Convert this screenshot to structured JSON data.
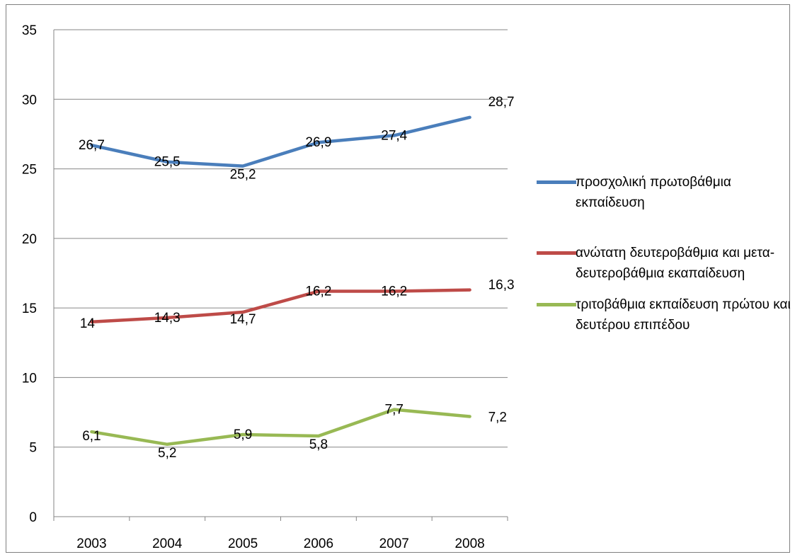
{
  "chart_data": {
    "type": "line",
    "categories": [
      "2003",
      "2004",
      "2005",
      "2006",
      "2007",
      "2008"
    ],
    "ylim": [
      0,
      35
    ],
    "yticks": [
      "0",
      "5",
      "10",
      "15",
      "20",
      "25",
      "30",
      "35"
    ],
    "grid": true,
    "legend_position": "right",
    "series": [
      {
        "name": "προσχολική πρωτοβάθμια εκπαίδευση",
        "color": "#4a7ebb",
        "values": [
          26.7,
          25.5,
          25.2,
          26.9,
          27.4,
          28.7
        ],
        "labels": [
          "26,7",
          "25,5",
          "25,2",
          "26,9",
          "27,4",
          "28,7"
        ]
      },
      {
        "name": "ανώτατη δευτεροβάθμια και μετα-δευτεροβάθμια εκαπαίδευση",
        "color": "#be4b48",
        "values": [
          14,
          14.3,
          14.7,
          16.2,
          16.2,
          16.3
        ],
        "labels": [
          "14",
          "14,3",
          "14,7",
          "16,2",
          "16,2",
          "16,3"
        ]
      },
      {
        "name": "τριτοβάθμια εκπαίδευση πρώτου και δευτέρου επιπέδου",
        "color": "#98b954",
        "values": [
          6.1,
          5.2,
          5.9,
          5.8,
          7.7,
          7.2
        ],
        "labels": [
          "6,1",
          "5,2",
          "5,9",
          "5,8",
          "7,7",
          "7,2"
        ]
      }
    ]
  }
}
